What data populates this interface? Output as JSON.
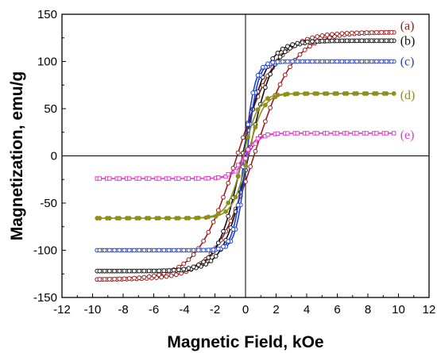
{
  "chart_data": {
    "type": "line",
    "title": "",
    "xlabel": "Magnetic Field, kOe",
    "ylabel": "Magnetization, emu/g",
    "xlim": [
      -12,
      12
    ],
    "ylim": [
      -150,
      150
    ],
    "xticks": [
      -12,
      -10,
      -8,
      -6,
      -4,
      -2,
      0,
      2,
      4,
      6,
      8,
      10,
      12
    ],
    "yticks": [
      -150,
      -100,
      -50,
      0,
      50,
      100,
      150
    ],
    "xtick_labels": [
      "-12",
      "-10",
      "-8",
      "-6",
      "-4",
      "-2",
      "0",
      "2",
      "4",
      "6",
      "8",
      "10",
      "12"
    ],
    "ytick_labels": [
      "-150",
      "-100",
      "-50",
      "0",
      "50",
      "100",
      "150"
    ],
    "grid": false,
    "zero_lines": true,
    "series": [
      {
        "label": "(a)",
        "color": "#9b1b1b",
        "marker": "circle-open",
        "ms": 131,
        "hc": 0.55,
        "h0": 2.6
      },
      {
        "label": "(b)",
        "color": "#111111",
        "marker": "circle-open",
        "ms": 122,
        "hc": 0.2,
        "h0": 1.6
      },
      {
        "label": "(c)",
        "color": "#1f3fd8",
        "marker": "circle-open",
        "ms": 100,
        "hc": 0.08,
        "h0": 0.7
      },
      {
        "label": "(d)",
        "color": "#8f8f1a",
        "marker": "circle-filled",
        "ms": 66,
        "hc": 0.15,
        "h0": 1.0
      },
      {
        "label": "(e)",
        "color": "#e040c8",
        "marker": "square-open",
        "ms": 24,
        "hc": 0.1,
        "h0": 0.9
      }
    ],
    "field_range": [
      -9.7,
      9.7
    ]
  }
}
